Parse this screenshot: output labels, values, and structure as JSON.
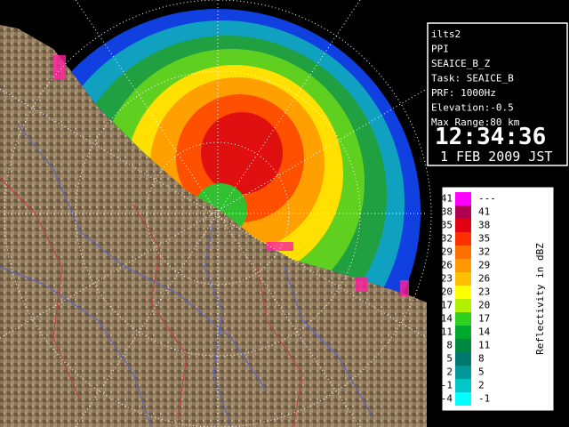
{
  "info": {
    "lines": [
      "ilts2",
      "PPI",
      "SEAICE_B_Z",
      "Task: SEAICE_B",
      "PRF: 1000Hz",
      "Elevation:-0.5",
      "Max Range:80 km"
    ],
    "time": "12:34:36",
    "date": "1 FEB 2009 JST"
  },
  "legend": {
    "title": "Reflectivity in dBZ",
    "rows": [
      {
        "low": ">41",
        "high": "---",
        "color": "#ff00ff"
      },
      {
        "low": "38",
        "high": "41",
        "color": "#b00050"
      },
      {
        "low": "35",
        "high": "38",
        "color": "#e00010"
      },
      {
        "low": "32",
        "high": "35",
        "color": "#ff3000"
      },
      {
        "low": "29",
        "high": "32",
        "color": "#ff7000"
      },
      {
        "low": "26",
        "high": "29",
        "color": "#ff9800"
      },
      {
        "low": "23",
        "high": "26",
        "color": "#ffc000"
      },
      {
        "low": "20",
        "high": "23",
        "color": "#ffff00"
      },
      {
        "low": "17",
        "high": "20",
        "color": "#b0f000"
      },
      {
        "low": "14",
        "high": "17",
        "color": "#30d020"
      },
      {
        "low": "11",
        "high": "14",
        "color": "#00a830"
      },
      {
        "low": "8",
        "high": "11",
        "color": "#008840"
      },
      {
        "low": "5",
        "high": "8",
        "color": "#007870"
      },
      {
        "low": "2",
        "high": "5",
        "color": "#009898"
      },
      {
        "low": "-1",
        "high": "2",
        "color": "#00c8c8"
      },
      {
        "low": "-4",
        "high": "-1",
        "color": "#00ffff"
      }
    ]
  }
}
